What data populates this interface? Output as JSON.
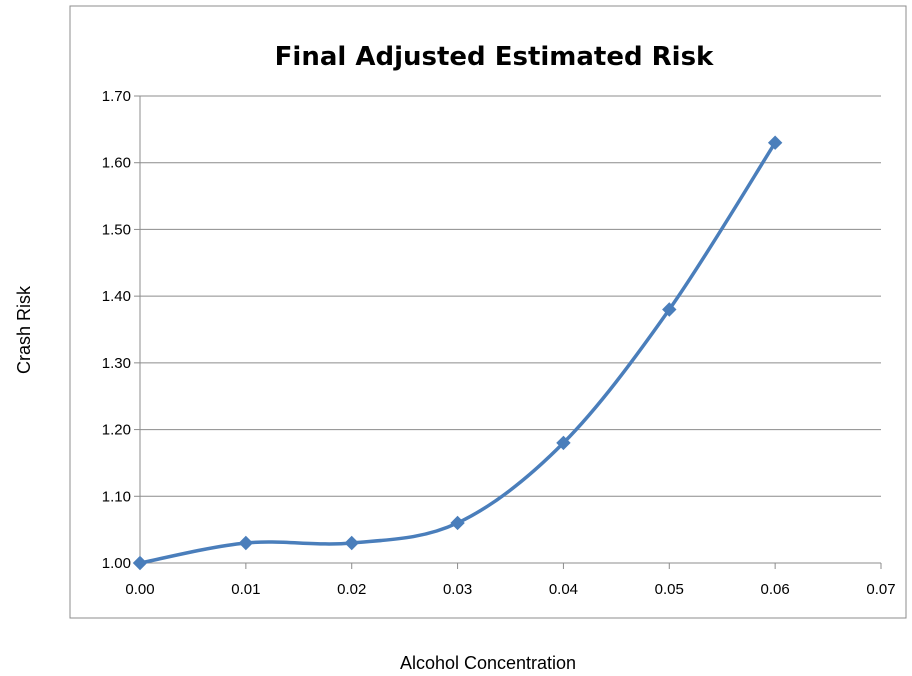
{
  "chart_data": {
    "type": "line",
    "title": "Final Adjusted Estimated Risk",
    "xlabel": "Alcohol Concentration",
    "ylabel": "Crash Risk",
    "xlim": [
      0,
      0.07
    ],
    "ylim": [
      1.0,
      1.7
    ],
    "x_ticks": [
      "0.00",
      "0.01",
      "0.02",
      "0.03",
      "0.04",
      "0.05",
      "0.06",
      "0.07"
    ],
    "y_ticks": [
      "1.00",
      "1.10",
      "1.20",
      "1.30",
      "1.40",
      "1.50",
      "1.60",
      "1.70"
    ],
    "grid": "horizontal",
    "legend": "none",
    "smooth": true,
    "series": [
      {
        "color": "#4a7ebb",
        "marker": "diamond",
        "x": [
          0.0,
          0.01,
          0.02,
          0.03,
          0.04,
          0.05,
          0.06
        ],
        "y": [
          1.0,
          1.03,
          1.03,
          1.06,
          1.18,
          1.38,
          1.63
        ]
      }
    ]
  }
}
